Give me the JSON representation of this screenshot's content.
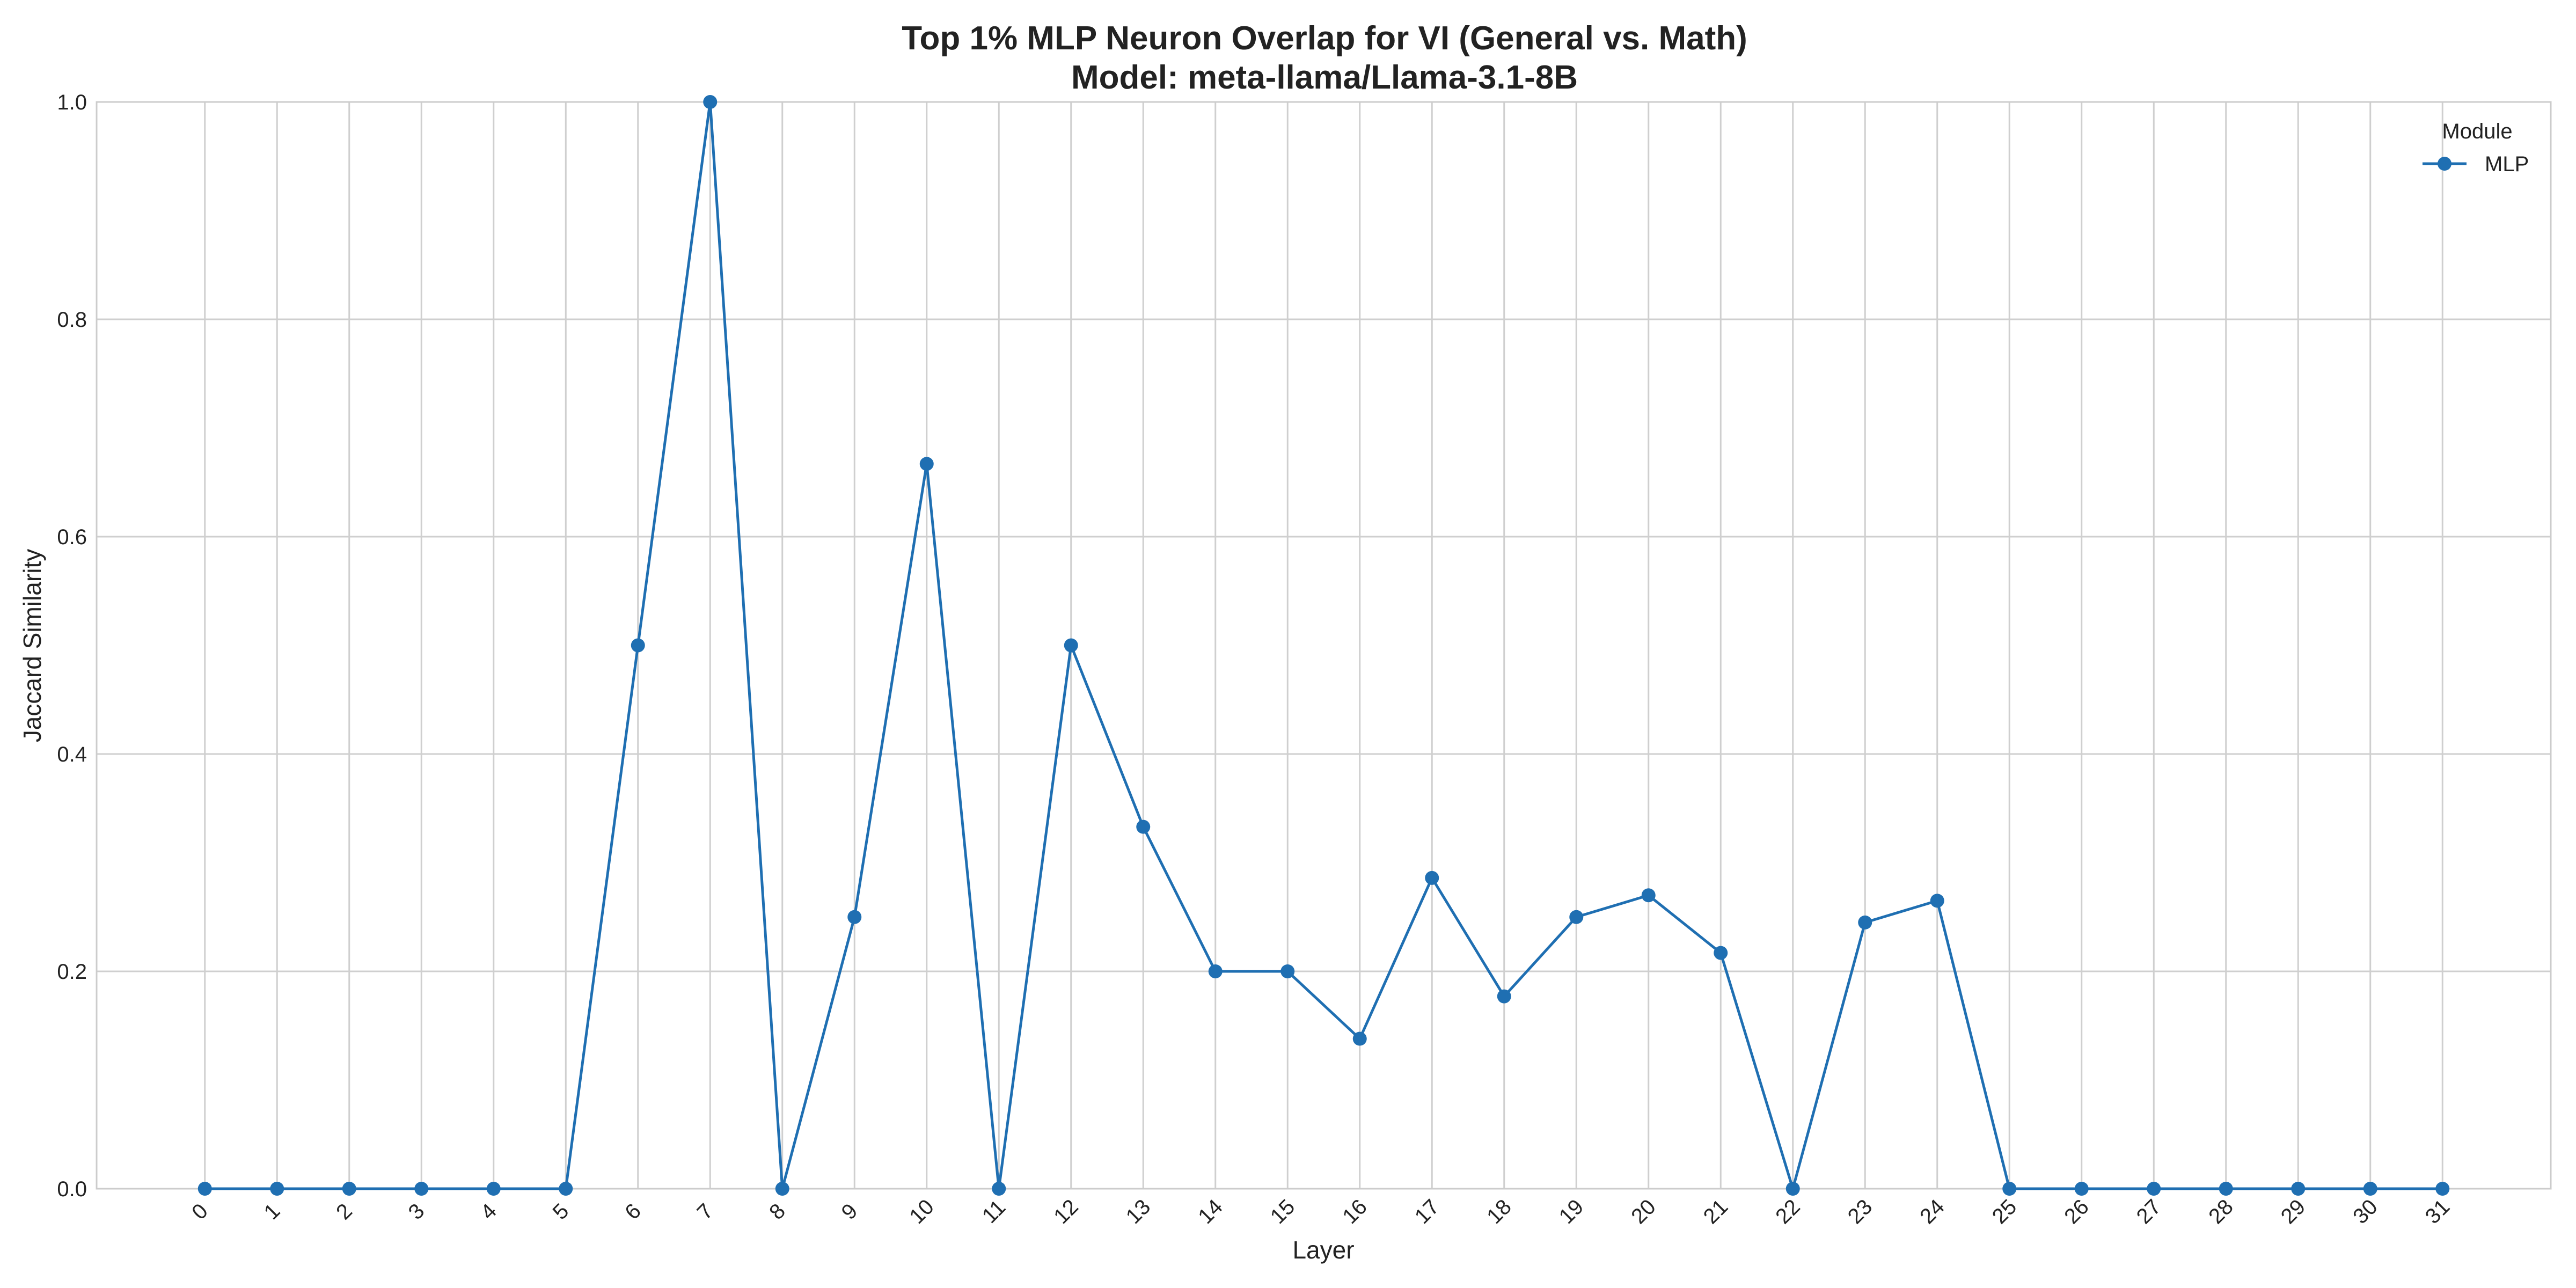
{
  "chart_data": {
    "type": "line",
    "title": "Top 1% MLP Neuron Overlap for VI (General vs. Math)",
    "subtitle": "Model: meta-llama/Llama-3.1-8B",
    "xlabel": "Layer",
    "ylabel": "Jaccard Similarity",
    "x": [
      0,
      1,
      2,
      3,
      4,
      5,
      6,
      7,
      8,
      9,
      10,
      11,
      12,
      13,
      14,
      15,
      16,
      17,
      18,
      19,
      20,
      21,
      22,
      23,
      24,
      25,
      26,
      27,
      28,
      29,
      30,
      31
    ],
    "x_tick_labels": [
      "0",
      "1",
      "2",
      "3",
      "4",
      "5",
      "6",
      "7",
      "8",
      "9",
      "10",
      "11",
      "12",
      "13",
      "14",
      "15",
      "16",
      "17",
      "18",
      "19",
      "20",
      "21",
      "22",
      "23",
      "24",
      "25",
      "26",
      "27",
      "28",
      "29",
      "30",
      "31"
    ],
    "y_ticks": [
      0.0,
      0.2,
      0.4,
      0.6,
      0.8,
      1.0
    ],
    "y_tick_labels": [
      "0.0",
      "0.2",
      "0.4",
      "0.6",
      "0.8",
      "1.0"
    ],
    "ylim": [
      0,
      1
    ],
    "xlim": [
      -1.5,
      32.5
    ],
    "grid": true,
    "legend": {
      "title": "Module",
      "placement": "top-right"
    },
    "series": [
      {
        "name": "MLP",
        "color": "#1f6fb2",
        "marker": "circle",
        "values": [
          0,
          0,
          0,
          0,
          0,
          0,
          0.5,
          1.0,
          0,
          0.25,
          0.667,
          0,
          0.5,
          0.333,
          0.2,
          0.2,
          0.138,
          0.286,
          0.177,
          0.25,
          0.27,
          0.217,
          0,
          0.245,
          0.265,
          0,
          0,
          0,
          0,
          0,
          0,
          0
        ]
      }
    ]
  }
}
